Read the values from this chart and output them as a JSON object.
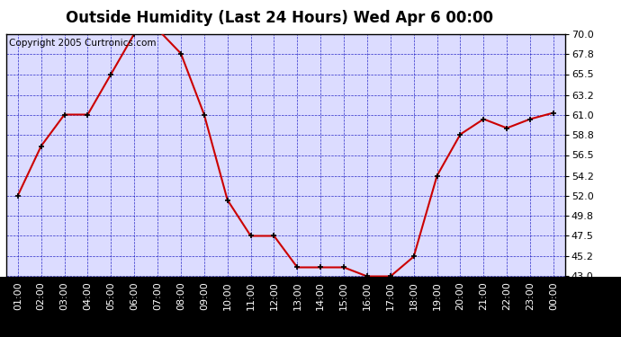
{
  "title": "Outside Humidity (Last 24 Hours) Wed Apr 6 00:00",
  "copyright": "Copyright 2005 Curtronics.com",
  "x_labels": [
    "01:00",
    "02:00",
    "03:00",
    "04:00",
    "05:00",
    "06:00",
    "07:00",
    "08:00",
    "09:00",
    "10:00",
    "11:00",
    "12:00",
    "13:00",
    "14:00",
    "15:00",
    "16:00",
    "17:00",
    "18:00",
    "19:00",
    "20:00",
    "21:00",
    "22:00",
    "23:00",
    "00:00"
  ],
  "x_values": [
    1,
    2,
    3,
    4,
    5,
    6,
    7,
    8,
    9,
    10,
    11,
    12,
    13,
    14,
    15,
    16,
    17,
    18,
    19,
    20,
    21,
    22,
    23,
    24
  ],
  "y_values": [
    52.0,
    57.5,
    61.0,
    61.0,
    65.5,
    70.0,
    70.5,
    67.8,
    61.0,
    51.5,
    47.5,
    47.5,
    44.0,
    44.0,
    44.0,
    43.0,
    43.0,
    45.2,
    54.2,
    58.8,
    60.5,
    59.5,
    60.5,
    61.2
  ],
  "y_ticks": [
    43.0,
    45.2,
    47.5,
    49.8,
    52.0,
    54.2,
    56.5,
    58.8,
    61.0,
    63.2,
    65.5,
    67.8,
    70.0
  ],
  "ylim": [
    43.0,
    70.0
  ],
  "line_color": "#cc0000",
  "marker_color": "#000000",
  "bg_color": "#dcdcff",
  "grid_color": "#0000bb",
  "plot_bg": "#ffffff",
  "outer_bg": "#ffffff",
  "title_fontsize": 12,
  "copyright_fontsize": 7.5,
  "tick_fontsize": 8,
  "marker_size": 5
}
